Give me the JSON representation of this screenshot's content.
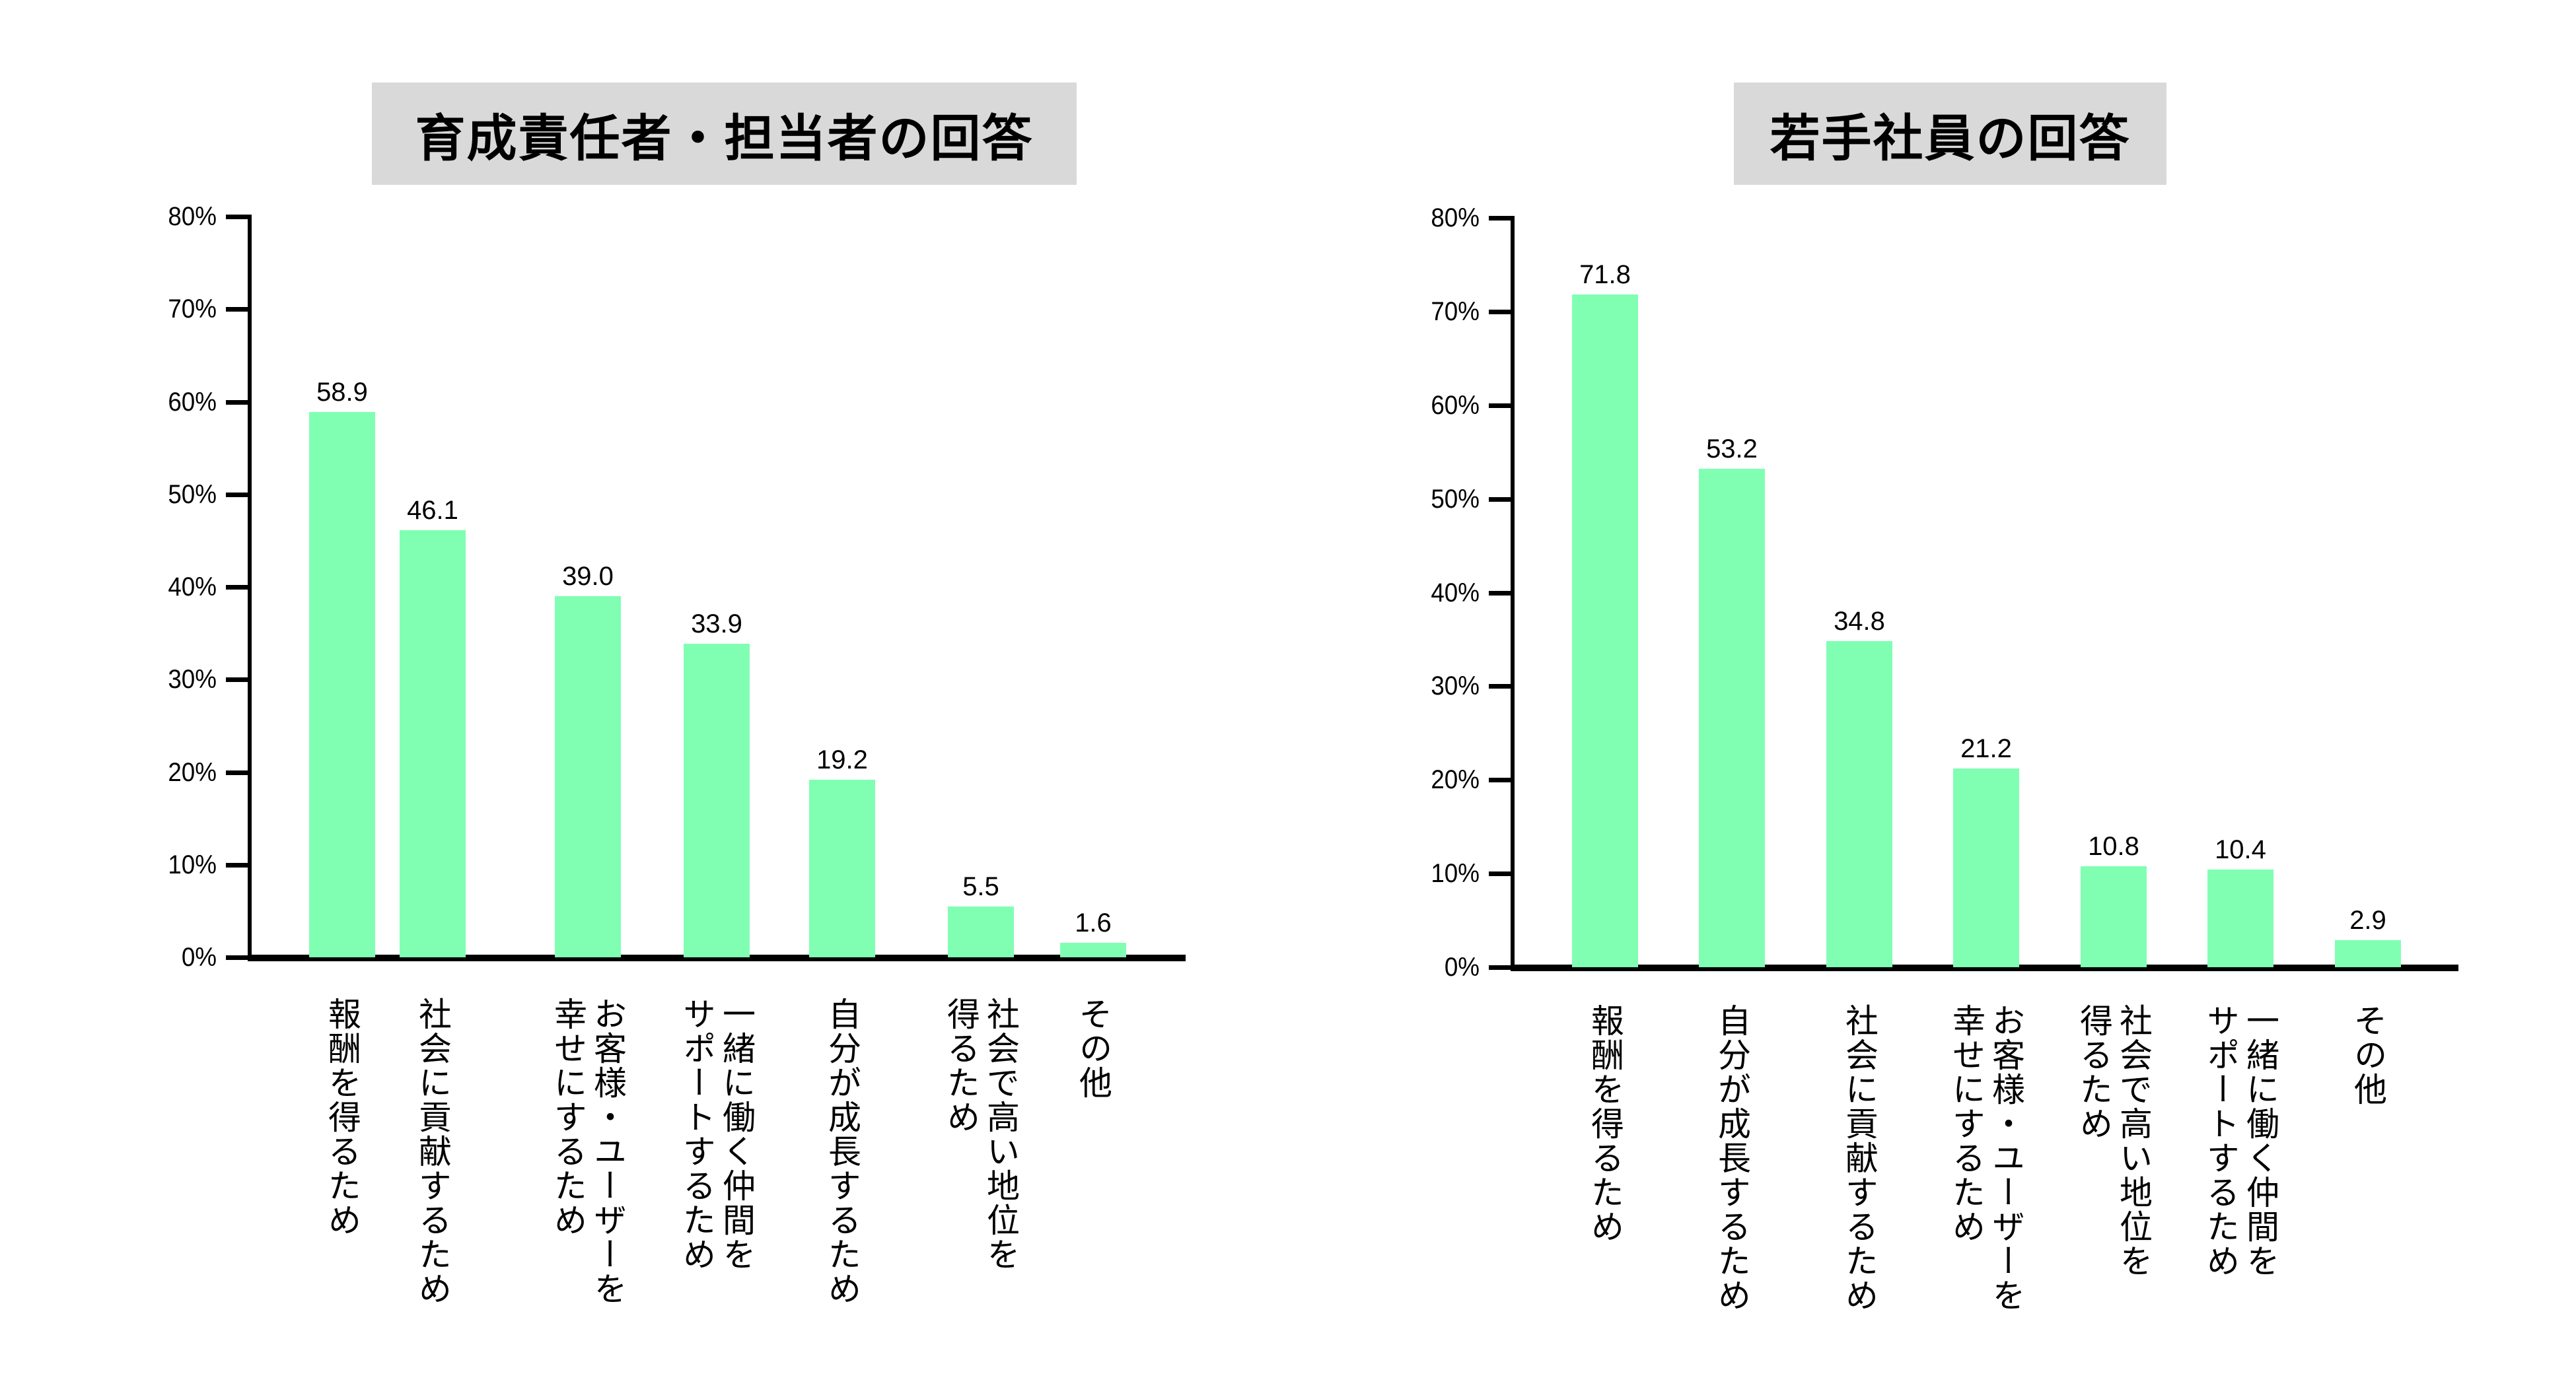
{
  "chart_data": [
    {
      "type": "bar",
      "title": "育成責任者・担当者の回答",
      "xlabel": "",
      "ylabel": "",
      "ylim": [
        0,
        80
      ],
      "yticks": [
        "0%",
        "10%",
        "20%",
        "30%",
        "40%",
        "50%",
        "60%",
        "70%",
        "80%"
      ],
      "grid": false,
      "legend": null,
      "categories": [
        "報酬を得るため",
        "社会に貢献するため",
        "お客様・ユーザーを幸せにするため",
        "一緒に働く仲間をサポートするため",
        "自分が成長するため",
        "社会で高い地位を得るため",
        "その他"
      ],
      "category_lines": [
        [
          "報酬を得るため"
        ],
        [
          "社会に貢献するため"
        ],
        [
          "お客様・ユーザーを",
          "幸せにするため"
        ],
        [
          "一緒に働く仲間を",
          "サポートするため"
        ],
        [
          "自分が成長するため"
        ],
        [
          "社会で高い地位を",
          "得るため"
        ],
        [
          "その他"
        ]
      ],
      "values": [
        58.9,
        46.1,
        39.0,
        33.9,
        19.2,
        5.5,
        1.6
      ],
      "value_labels": [
        "58.9",
        "46.1",
        "39.0",
        "33.9",
        "19.2",
        "5.5",
        "1.6"
      ],
      "bar_color": "#80ffb3"
    },
    {
      "type": "bar",
      "title": "若手社員の回答",
      "xlabel": "",
      "ylabel": "",
      "ylim": [
        0,
        80
      ],
      "yticks": [
        "0%",
        "10%",
        "20%",
        "30%",
        "40%",
        "50%",
        "60%",
        "70%",
        "80%"
      ],
      "grid": false,
      "legend": null,
      "categories": [
        "報酬を得るため",
        "自分が成長するため",
        "社会に貢献するため",
        "お客様・ユーザーを幸せにするため",
        "社会で高い地位を得るため",
        "一緒に働く仲間をサポートするため",
        "その他"
      ],
      "category_lines": [
        [
          "報酬を得るため"
        ],
        [
          "自分が成長するため"
        ],
        [
          "社会に貢献するため"
        ],
        [
          "お客様・ユーザーを",
          "幸せにするため"
        ],
        [
          "社会で高い地位を",
          "得るため"
        ],
        [
          "一緒に働く仲間を",
          "サポートするため"
        ],
        [
          "その他"
        ]
      ],
      "values": [
        71.8,
        53.2,
        34.8,
        21.2,
        10.8,
        10.4,
        2.9
      ],
      "value_labels": [
        "71.8",
        "53.2",
        "34.8",
        "21.2",
        "10.8",
        "10.4",
        "2.9"
      ],
      "bar_color": "#80ffb3"
    }
  ],
  "colors": {
    "bar": "#80ffb3",
    "title_bg": "#d9d9d9",
    "axis": "#000000"
  }
}
